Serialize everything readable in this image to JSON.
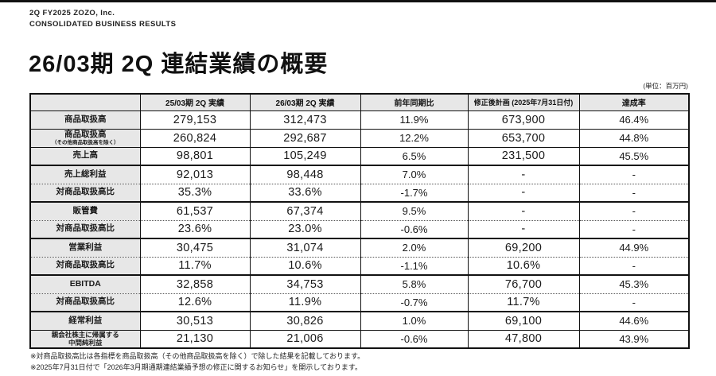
{
  "meta": {
    "eyebrow_line1": "2Q FY2025 ZOZO, Inc.",
    "eyebrow_line2": "CONSOLIDATED BUSINESS RESULTS",
    "title": "26/03期 2Q 連結業績の概要",
    "unit_note": "(単位：百万円)"
  },
  "table": {
    "columns": [
      "",
      "25/03期 2Q 実績",
      "26/03期 2Q 実績",
      "前年同期比",
      "修正後計画 (2025年7月31日付)",
      "達成率"
    ],
    "rows": [
      {
        "label": "商品取扱高",
        "sublabel": "",
        "values": [
          "279,153",
          "312,473",
          "11.9%",
          "673,900",
          "46.4%"
        ],
        "divider": "none"
      },
      {
        "label": "商品取扱高",
        "sublabel": "（その他商品取扱高を除く）",
        "values": [
          "260,824",
          "292,687",
          "12.2%",
          "653,700",
          "44.8%"
        ],
        "divider": "solid"
      },
      {
        "label": "売上高",
        "sublabel": "",
        "values": [
          "98,801",
          "105,249",
          "6.5%",
          "231,500",
          "45.5%"
        ],
        "divider": "solid"
      },
      {
        "label": "売上総利益",
        "sublabel": "",
        "values": [
          "92,013",
          "98,448",
          "7.0%",
          "-",
          "-"
        ],
        "divider": "thick"
      },
      {
        "label": "対商品取扱高比",
        "sublabel": "",
        "values": [
          "35.3%",
          "33.6%",
          "-1.7%",
          "-",
          "-"
        ],
        "divider": "dotted"
      },
      {
        "label": "販管費",
        "sublabel": "",
        "values": [
          "61,537",
          "67,374",
          "9.5%",
          "-",
          "-"
        ],
        "divider": "thick"
      },
      {
        "label": "対商品取扱高比",
        "sublabel": "",
        "values": [
          "23.6%",
          "23.0%",
          "-0.6%",
          "-",
          "-"
        ],
        "divider": "dotted"
      },
      {
        "label": "営業利益",
        "sublabel": "",
        "values": [
          "30,475",
          "31,074",
          "2.0%",
          "69,200",
          "44.9%"
        ],
        "divider": "thick"
      },
      {
        "label": "対商品取扱高比",
        "sublabel": "",
        "values": [
          "11.7%",
          "10.6%",
          "-1.1%",
          "10.6%",
          "-"
        ],
        "divider": "dotted"
      },
      {
        "label": "EBITDA",
        "sublabel": "",
        "values": [
          "32,858",
          "34,753",
          "5.8%",
          "76,700",
          "45.3%"
        ],
        "divider": "thick"
      },
      {
        "label": "対商品取扱高比",
        "sublabel": "",
        "values": [
          "12.6%",
          "11.9%",
          "-0.7%",
          "11.7%",
          "-"
        ],
        "divider": "dotted"
      },
      {
        "label": "経常利益",
        "sublabel": "",
        "values": [
          "30,513",
          "30,826",
          "1.0%",
          "69,100",
          "44.6%"
        ],
        "divider": "thick"
      },
      {
        "label": "親会社株主に帰属する|中間純利益",
        "sublabel": "",
        "values": [
          "21,130",
          "21,006",
          "-0.6%",
          "47,800",
          "43.9%"
        ],
        "divider": "solid"
      }
    ]
  },
  "footnotes": [
    "※対商品取扱高比は各指標を商品取扱高（その他商品取扱高を除く）で除した結果を記載しております。",
    "※2025年7月31日付で「2026年3月期通期連結業績予想の修正に関するお知らせ」を開示しております。"
  ]
}
